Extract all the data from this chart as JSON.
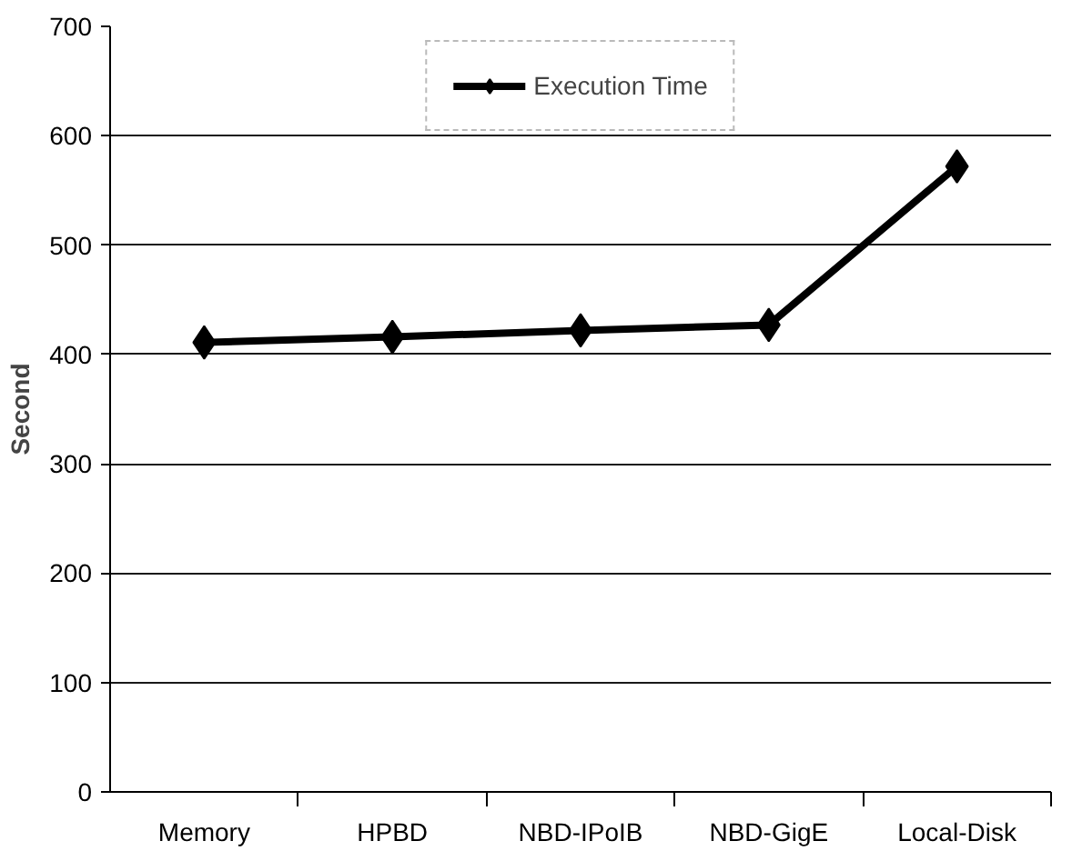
{
  "chart_data": {
    "type": "line",
    "ylabel": "Second",
    "categories": [
      "Memory",
      "HPBD",
      "NBD-IPoIB",
      "NBD-GigE",
      "Local-Disk"
    ],
    "series": [
      {
        "name": "Execution Time",
        "color": "#000000",
        "values": [
          411,
          416,
          422,
          427,
          572
        ]
      }
    ],
    "ylim": [
      0,
      700
    ],
    "yticks": [
      0,
      100,
      200,
      300,
      400,
      500,
      600,
      700
    ],
    "grid": "y",
    "legend": "top",
    "marker": "diamond",
    "line_style": "solid"
  }
}
